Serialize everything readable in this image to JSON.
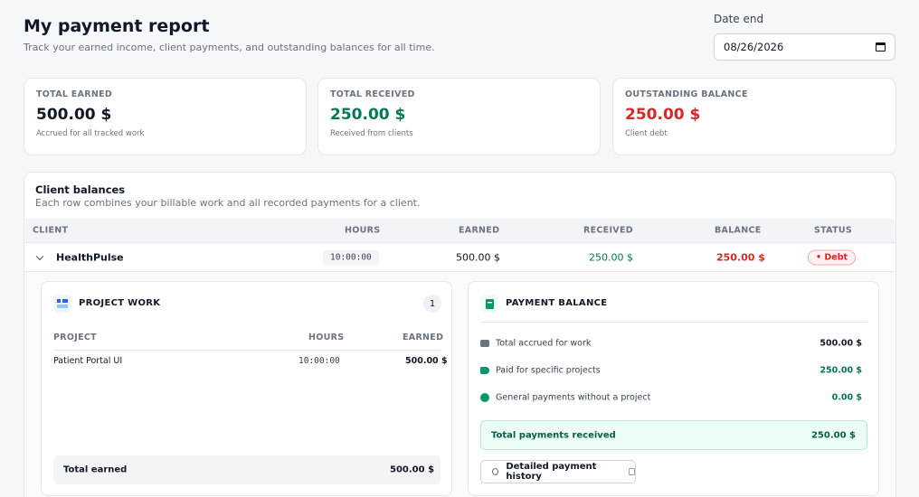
{
  "header": {
    "title": "My payment report",
    "subtitle": "Track your earned income, client payments, and outstanding balances for all time.",
    "date_label": "Date end",
    "date_value": "08/26/2026"
  },
  "summary": [
    {
      "label": "TOTAL EARNED",
      "value": "500.00 $",
      "note": "Accrued for all tracked work",
      "color": "#111827"
    },
    {
      "label": "TOTAL RECEIVED",
      "value": "250.00 $",
      "note": "Received from clients",
      "color": "#047857"
    },
    {
      "label": "OUTSTANDING BALANCE",
      "value": "250.00 $",
      "note": "Client debt",
      "color": "#dc2626"
    }
  ],
  "balances": {
    "title": "Client balances",
    "subtitle": "Each row combines your billable work and all recorded payments for a client.",
    "columns": [
      "CLIENT",
      "HOURS",
      "EARNED",
      "RECEIVED",
      "BALANCE",
      "STATUS"
    ],
    "row": {
      "client": "HealthPulse",
      "hours": "10:00:00",
      "earned": "500.00 $",
      "received": "250.00 $",
      "balance": "250.00 $",
      "status": "• Debt"
    }
  },
  "project_work": {
    "title": "PROJECT WORK",
    "count": "1",
    "columns": [
      "PROJECT",
      "HOURS",
      "EARNED"
    ],
    "rows": [
      {
        "project": "Patient Portal UI",
        "hours": "10:00:00",
        "earned": "500.00 $"
      }
    ],
    "total_label": "Total earned",
    "total_value": "500.00 $"
  },
  "payment_balance": {
    "title": "PAYMENT BALANCE",
    "rows": [
      {
        "label": "Total accrued for work",
        "value": "500.00 $",
        "icon": "briefcase-icon"
      },
      {
        "label": "Paid for specific projects",
        "value": "250.00 $",
        "icon": "tag-icon"
      },
      {
        "label": "General payments without a project",
        "value": "0.00 $",
        "icon": "globe-icon"
      }
    ],
    "received_label": "Total payments received",
    "received_value": "250.00 $",
    "history_button": "Detailed payment history"
  }
}
